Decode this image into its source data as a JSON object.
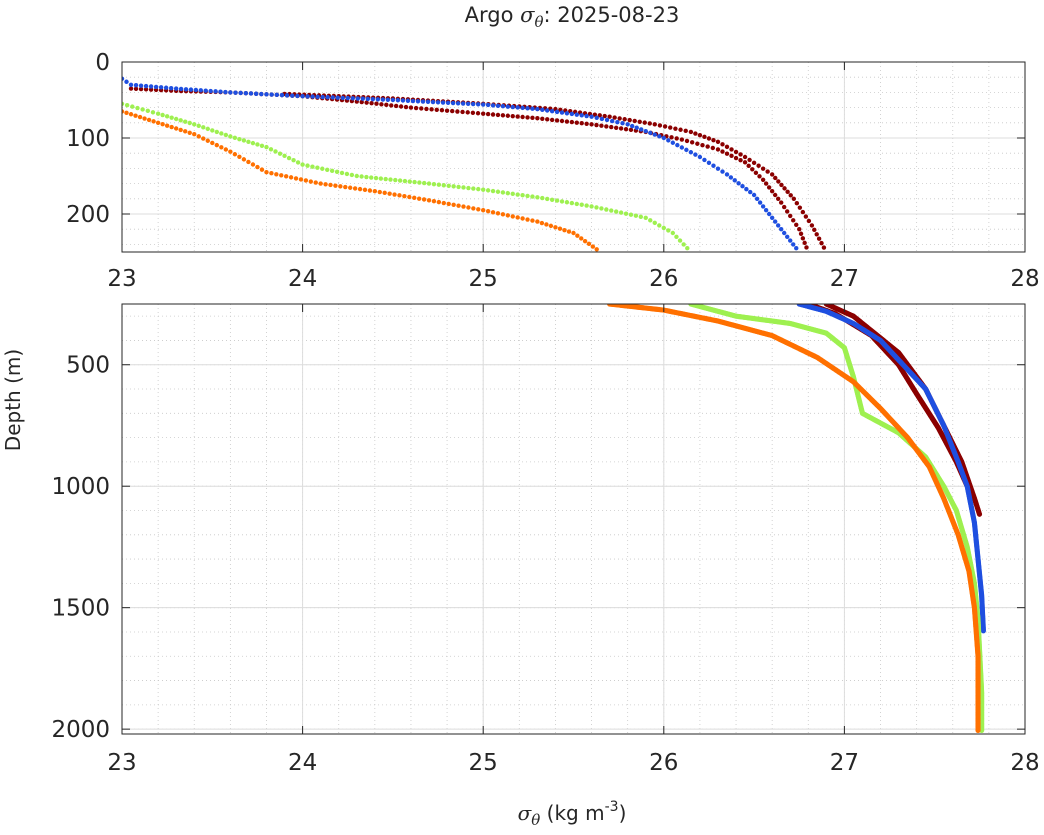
{
  "chart_data": [
    {
      "type": "scatter",
      "title_prefix": "Argo ",
      "title_symbol": "σ",
      "title_symbol_sub": "θ",
      "title_suffix": ": 2025-08-23",
      "xlim": [
        23,
        28
      ],
      "ylim": [
        0,
        250
      ],
      "y_reversed": true,
      "xticks": [
        "23",
        "24",
        "25",
        "26",
        "27",
        "28"
      ],
      "yticks": [
        "0",
        "100",
        "200"
      ],
      "ytick_values": [
        0,
        100,
        200
      ],
      "grid": true,
      "series": [
        {
          "name": "profile-dark-red",
          "color": "#8b0000",
          "points": [
            [
              23.05,
              35
            ],
            [
              23.3,
              38
            ],
            [
              23.6,
              40
            ],
            [
              24.0,
              45
            ],
            [
              24.3,
              52
            ],
            [
              24.6,
              60
            ],
            [
              25.0,
              68
            ],
            [
              25.3,
              74
            ],
            [
              25.6,
              82
            ],
            [
              25.9,
              92
            ],
            [
              26.1,
              102
            ],
            [
              26.3,
              115
            ],
            [
              26.45,
              132
            ],
            [
              26.55,
              155
            ],
            [
              26.65,
              185
            ],
            [
              26.75,
              220
            ],
            [
              26.8,
              250
            ]
          ],
          "points2": [
            [
              23.9,
              42
            ],
            [
              24.5,
              48
            ],
            [
              25.0,
              55
            ],
            [
              25.4,
              62
            ],
            [
              25.7,
              72
            ],
            [
              25.95,
              82
            ],
            [
              26.15,
              92
            ],
            [
              26.3,
              105
            ],
            [
              26.45,
              125
            ],
            [
              26.6,
              148
            ],
            [
              26.72,
              180
            ],
            [
              26.82,
              215
            ],
            [
              26.9,
              250
            ]
          ]
        },
        {
          "name": "profile-blue",
          "color": "#1f4fe0",
          "points": [
            [
              23.0,
              22
            ],
            [
              23.05,
              30
            ],
            [
              23.3,
              35
            ],
            [
              23.6,
              40
            ],
            [
              24.0,
              45
            ],
            [
              24.5,
              50
            ],
            [
              25.0,
              56
            ],
            [
              25.3,
              62
            ],
            [
              25.6,
              72
            ],
            [
              25.8,
              82
            ],
            [
              26.0,
              100
            ],
            [
              26.2,
              125
            ],
            [
              26.35,
              148
            ],
            [
              26.5,
              175
            ],
            [
              26.6,
              205
            ],
            [
              26.7,
              235
            ],
            [
              26.75,
              250
            ]
          ]
        },
        {
          "name": "profile-light-green",
          "color": "#9ef050",
          "points": [
            [
              23.0,
              55
            ],
            [
              23.2,
              68
            ],
            [
              23.4,
              82
            ],
            [
              23.6,
              98
            ],
            [
              23.8,
              112
            ],
            [
              24.0,
              135
            ],
            [
              24.3,
              150
            ],
            [
              24.7,
              160
            ],
            [
              25.0,
              168
            ],
            [
              25.3,
              178
            ],
            [
              25.6,
              190
            ],
            [
              25.9,
              205
            ],
            [
              26.05,
              225
            ],
            [
              26.15,
              250
            ]
          ]
        },
        {
          "name": "profile-orange",
          "color": "#ff7000",
          "points": [
            [
              23.0,
              65
            ],
            [
              23.2,
              80
            ],
            [
              23.4,
              95
            ],
            [
              23.6,
              118
            ],
            [
              23.8,
              145
            ],
            [
              24.1,
              160
            ],
            [
              24.4,
              170
            ],
            [
              24.7,
              182
            ],
            [
              25.0,
              195
            ],
            [
              25.3,
              210
            ],
            [
              25.5,
              225
            ],
            [
              25.65,
              250
            ]
          ]
        }
      ]
    },
    {
      "type": "scatter",
      "xlabel_symbol": "σ",
      "xlabel_symbol_sub": "θ",
      "xlabel_text": " (kg m",
      "xlabel_sup": "-3",
      "xlabel_close": ")",
      "ylabel": "Depth (m)",
      "xlim": [
        23,
        28
      ],
      "ylim": [
        250,
        2020
      ],
      "y_reversed": true,
      "xticks": [
        "23",
        "24",
        "25",
        "26",
        "27",
        "28"
      ],
      "yticks": [
        "500",
        "1000",
        "1500",
        "2000"
      ],
      "ytick_values": [
        500,
        1000,
        1500,
        2000
      ],
      "grid": true,
      "series": [
        {
          "name": "profile-dark-red",
          "color": "#8b0000",
          "points": [
            [
              26.9,
              250
            ],
            [
              27.05,
              300
            ],
            [
              27.15,
              360
            ],
            [
              27.3,
              450
            ],
            [
              27.45,
              600
            ],
            [
              27.55,
              750
            ],
            [
              27.65,
              900
            ],
            [
              27.72,
              1050
            ],
            [
              27.75,
              1120
            ]
          ],
          "points2": [
            [
              26.8,
              250
            ],
            [
              26.95,
              290
            ],
            [
              27.15,
              380
            ],
            [
              27.3,
              500
            ],
            [
              27.4,
              620
            ],
            [
              27.52,
              760
            ],
            [
              27.62,
              900
            ],
            [
              27.68,
              1000
            ]
          ]
        },
        {
          "name": "profile-blue",
          "color": "#1f4fe0",
          "points": [
            [
              26.75,
              250
            ],
            [
              26.9,
              280
            ],
            [
              27.05,
              330
            ],
            [
              27.2,
              400
            ],
            [
              27.3,
              480
            ],
            [
              27.45,
              600
            ],
            [
              27.55,
              750
            ],
            [
              27.63,
              900
            ],
            [
              27.68,
              1000
            ],
            [
              27.72,
              1150
            ],
            [
              27.74,
              1300
            ],
            [
              27.76,
              1450
            ],
            [
              27.77,
              1600
            ]
          ]
        },
        {
          "name": "profile-light-green",
          "color": "#9ef050",
          "points": [
            [
              26.15,
              250
            ],
            [
              26.4,
              300
            ],
            [
              26.7,
              330
            ],
            [
              26.9,
              370
            ],
            [
              27.0,
              430
            ],
            [
              27.05,
              550
            ],
            [
              27.1,
              700
            ],
            [
              27.3,
              780
            ],
            [
              27.45,
              880
            ],
            [
              27.55,
              1000
            ],
            [
              27.62,
              1100
            ],
            [
              27.68,
              1250
            ],
            [
              27.72,
              1400
            ],
            [
              27.74,
              1550
            ],
            [
              27.75,
              1700
            ],
            [
              27.76,
              1850
            ],
            [
              27.76,
              2010
            ]
          ]
        },
        {
          "name": "profile-orange",
          "color": "#ff7000",
          "points": [
            [
              25.7,
              250
            ],
            [
              26.0,
              275
            ],
            [
              26.3,
              320
            ],
            [
              26.6,
              380
            ],
            [
              26.85,
              470
            ],
            [
              27.05,
              570
            ],
            [
              27.2,
              680
            ],
            [
              27.35,
              800
            ],
            [
              27.47,
              920
            ],
            [
              27.55,
              1050
            ],
            [
              27.63,
              1200
            ],
            [
              27.69,
              1350
            ],
            [
              27.72,
              1500
            ],
            [
              27.74,
              1700
            ],
            [
              27.74,
              1850
            ],
            [
              27.74,
              2010
            ]
          ]
        }
      ]
    }
  ]
}
